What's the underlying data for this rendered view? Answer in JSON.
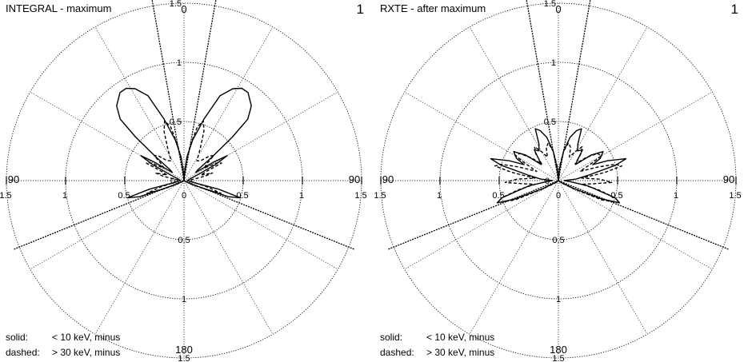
{
  "chart_data": [
    {
      "type": "polar",
      "title": "INTEGRAL - maximum",
      "panel_number": "1",
      "radial_ticks": [
        0.5,
        1,
        1.5
      ],
      "radial_tick_labels": [
        "0.5",
        "1",
        "1.5"
      ],
      "center_label": "0",
      "angle_labels": {
        "top": "0",
        "left": "90",
        "right": "90",
        "bottom": "180"
      },
      "grid": true,
      "spokes_deg": [
        30,
        60,
        120,
        150,
        210,
        240,
        300,
        330
      ],
      "cone_lines_deg": [
        -10,
        10,
        -112,
        112
      ],
      "legend": [
        {
          "key": "solid:",
          "text": "< 10 keV, minus"
        },
        {
          "key": "dashed:",
          "text": "> 30 keV, minus"
        }
      ],
      "series": [
        {
          "name": "solid",
          "style": "solid",
          "points": [
            [
              0,
              0
            ],
            [
              3,
              0.06
            ],
            [
              7,
              0.2
            ],
            [
              12,
              0.35
            ],
            [
              18,
              0.55
            ],
            [
              23,
              0.78
            ],
            [
              28,
              0.88
            ],
            [
              32,
              0.92
            ],
            [
              36,
              0.92
            ],
            [
              42,
              0.85
            ],
            [
              46,
              0.75
            ],
            [
              48,
              0.55
            ],
            [
              50,
              0.3
            ],
            [
              52,
              0.15
            ],
            [
              55,
              0.12
            ],
            [
              58,
              0.3
            ],
            [
              60,
              0.42
            ],
            [
              63,
              0.3
            ],
            [
              67,
              0.12
            ],
            [
              75,
              0.05
            ],
            [
              90,
              0.03
            ],
            [
              100,
              0.06
            ],
            [
              104,
              0.3
            ],
            [
              107,
              0.5
            ],
            [
              110,
              0.4
            ],
            [
              114,
              0.1
            ],
            [
              120,
              0.02
            ],
            [
              180,
              0
            ]
          ]
        },
        {
          "name": "dashed",
          "style": "dashed",
          "points": [
            [
              0,
              0
            ],
            [
              5,
              0.12
            ],
            [
              10,
              0.3
            ],
            [
              14,
              0.47
            ],
            [
              18,
              0.53
            ],
            [
              22,
              0.45
            ],
            [
              27,
              0.3
            ],
            [
              33,
              0.2
            ],
            [
              40,
              0.22
            ],
            [
              46,
              0.3
            ],
            [
              50,
              0.33
            ],
            [
              53,
              0.25
            ],
            [
              58,
              0.2
            ],
            [
              62,
              0.32
            ],
            [
              65,
              0.35
            ],
            [
              68,
              0.2
            ],
            [
              72,
              0.15
            ],
            [
              75,
              0.25
            ],
            [
              78,
              0.18
            ],
            [
              85,
              0.05
            ],
            [
              95,
              0.05
            ],
            [
              100,
              0.08
            ],
            [
              105,
              0.2
            ],
            [
              109,
              0.33
            ],
            [
              112,
              0.2
            ],
            [
              118,
              0.05
            ],
            [
              180,
              0
            ]
          ]
        }
      ]
    },
    {
      "type": "polar",
      "title": "RXTE - after maximum",
      "panel_number": "1",
      "radial_ticks": [
        0.5,
        1,
        1.5
      ],
      "radial_tick_labels": [
        "0.5",
        "1",
        "1.5"
      ],
      "center_label": "0",
      "angle_labels": {
        "top": "0",
        "left": "90",
        "right": "90",
        "bottom": "180"
      },
      "grid": true,
      "spokes_deg": [
        30,
        60,
        120,
        150,
        210,
        240,
        300,
        330
      ],
      "cone_lines_deg": [
        -10,
        10,
        -112,
        112
      ],
      "legend": [
        {
          "key": "solid:",
          "text": "< 10 keV, minus"
        },
        {
          "key": "dashed:",
          "text": "> 30 keV, minus"
        }
      ],
      "series": [
        {
          "name": "solid",
          "style": "solid",
          "points": [
            [
              0,
              0
            ],
            [
              5,
              0.1
            ],
            [
              10,
              0.25
            ],
            [
              15,
              0.38
            ],
            [
              20,
              0.45
            ],
            [
              24,
              0.48
            ],
            [
              28,
              0.35
            ],
            [
              33,
              0.3
            ],
            [
              38,
              0.33
            ],
            [
              42,
              0.25
            ],
            [
              47,
              0.2
            ],
            [
              52,
              0.35
            ],
            [
              57,
              0.45
            ],
            [
              62,
              0.4
            ],
            [
              65,
              0.32
            ],
            [
              68,
              0.45
            ],
            [
              72,
              0.6
            ],
            [
              75,
              0.5
            ],
            [
              80,
              0.25
            ],
            [
              85,
              0.15
            ],
            [
              90,
              0.05
            ],
            [
              95,
              0.1
            ],
            [
              100,
              0.25
            ],
            [
              104,
              0.35
            ],
            [
              107,
              0.5
            ],
            [
              110,
              0.55
            ],
            [
              113,
              0.4
            ],
            [
              117,
              0.15
            ],
            [
              125,
              0.03
            ],
            [
              180,
              0
            ]
          ]
        },
        {
          "name": "dashed",
          "style": "dashed",
          "points": [
            [
              0,
              0
            ],
            [
              5,
              0.12
            ],
            [
              10,
              0.25
            ],
            [
              15,
              0.33
            ],
            [
              20,
              0.3
            ],
            [
              25,
              0.22
            ],
            [
              30,
              0.28
            ],
            [
              35,
              0.35
            ],
            [
              40,
              0.3
            ],
            [
              45,
              0.2
            ],
            [
              50,
              0.3
            ],
            [
              55,
              0.4
            ],
            [
              60,
              0.42
            ],
            [
              63,
              0.3
            ],
            [
              67,
              0.2
            ],
            [
              71,
              0.35
            ],
            [
              74,
              0.5
            ],
            [
              77,
              0.55
            ],
            [
              80,
              0.4
            ],
            [
              84,
              0.2
            ],
            [
              88,
              0.35
            ],
            [
              92,
              0.45
            ],
            [
              95,
              0.3
            ],
            [
              99,
              0.2
            ],
            [
              103,
              0.35
            ],
            [
              107,
              0.5
            ],
            [
              110,
              0.55
            ],
            [
              114,
              0.4
            ],
            [
              118,
              0.15
            ],
            [
              125,
              0.04
            ],
            [
              180,
              0
            ]
          ]
        }
      ]
    }
  ]
}
